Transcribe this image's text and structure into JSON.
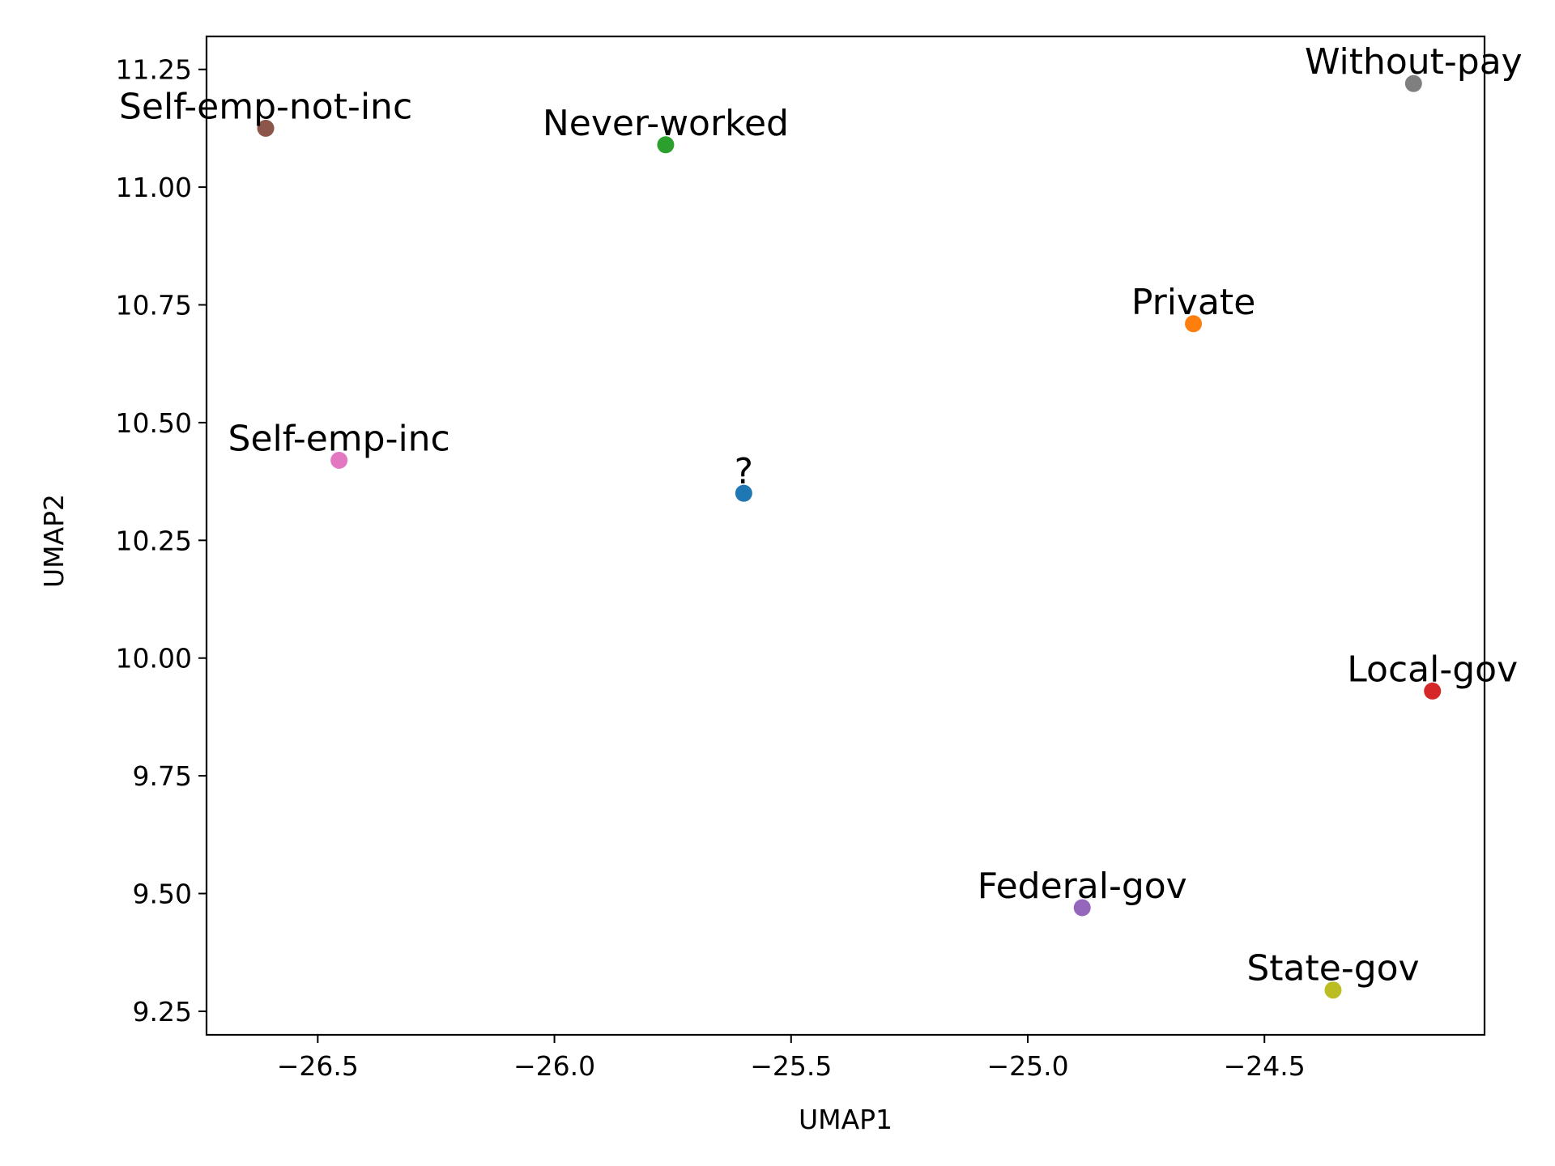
{
  "chart_data": {
    "type": "scatter",
    "xlabel": "UMAP1",
    "ylabel": "UMAP2",
    "xlim": [
      -26.735,
      -24.035
    ],
    "ylim": [
      9.2,
      11.32
    ],
    "x_ticks": [
      -26.5,
      -26.0,
      -25.5,
      -25.0,
      -24.5
    ],
    "x_tick_labels": [
      "−26.5",
      "−26.0",
      "−25.5",
      "−25.0",
      "−24.5"
    ],
    "y_ticks": [
      9.25,
      9.5,
      9.75,
      10.0,
      10.25,
      10.5,
      10.75,
      11.0,
      11.25
    ],
    "y_tick_labels": [
      "9.25",
      "9.50",
      "9.75",
      "10.00",
      "10.25",
      "10.50",
      "10.75",
      "11.00",
      "11.25"
    ],
    "grid": false,
    "points": [
      {
        "label": "?",
        "x": -25.6,
        "y": 10.35,
        "color": "#1f77b4"
      },
      {
        "label": "Private",
        "x": -24.65,
        "y": 10.71,
        "color": "#ff7f0e"
      },
      {
        "label": "Never-worked",
        "x": -25.765,
        "y": 11.09,
        "color": "#2ca02c"
      },
      {
        "label": "Local-gov",
        "x": -24.145,
        "y": 9.93,
        "color": "#d62728"
      },
      {
        "label": "Federal-gov",
        "x": -24.885,
        "y": 9.47,
        "color": "#9467bd"
      },
      {
        "label": "Self-emp-not-inc",
        "x": -26.61,
        "y": 11.125,
        "color": "#8c564b"
      },
      {
        "label": "Self-emp-inc",
        "x": -26.455,
        "y": 10.42,
        "color": "#e377c2"
      },
      {
        "label": "Without-pay",
        "x": -24.185,
        "y": 11.22,
        "color": "#7f7f7f"
      },
      {
        "label": "State-gov",
        "x": -24.355,
        "y": 9.295,
        "color": "#bcbd22"
      }
    ]
  }
}
